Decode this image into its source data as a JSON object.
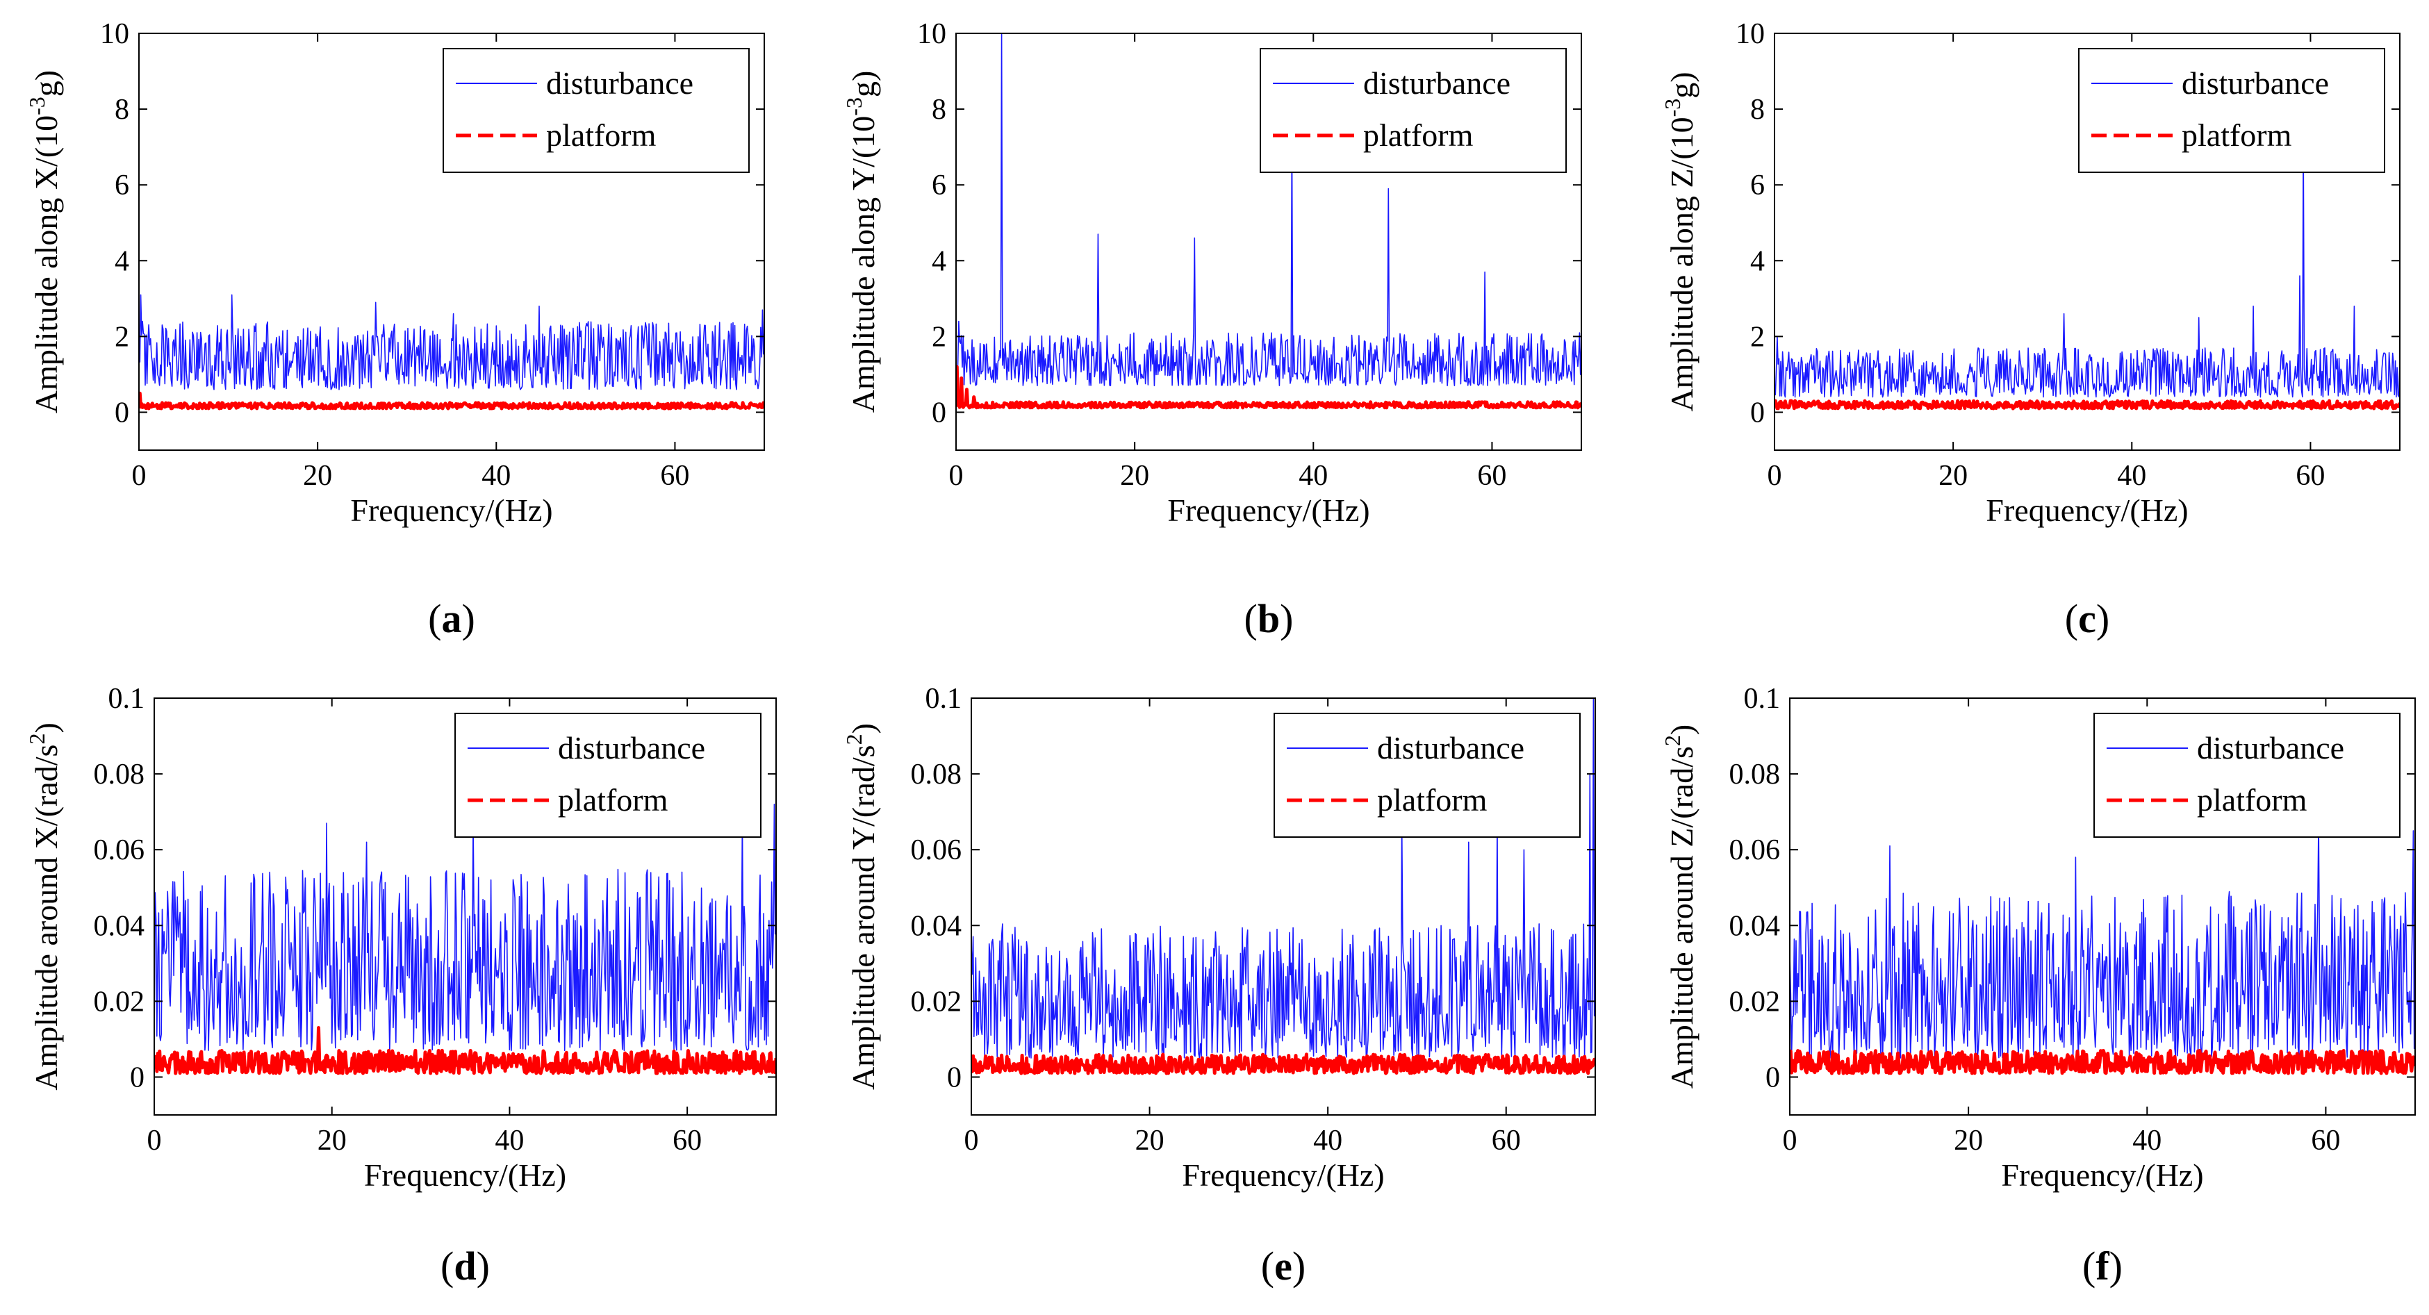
{
  "figure": {
    "colors": {
      "disturbance": "#1a1aff",
      "platform": "#ff0000",
      "axis": "#000000"
    }
  },
  "chart_data": [
    {
      "type": "line",
      "panel_label": "(a)",
      "panel_letter": "a",
      "xlabel": "Frequency/(Hz)",
      "ylabel": "Amplitude along X/(10",
      "ylabel_sup": "-3",
      "ylabel_unit": "g)",
      "xlim": [
        0,
        70
      ],
      "ylim": [
        -1,
        10
      ],
      "xticks": [
        0,
        20,
        40,
        60
      ],
      "xtick_labels": [
        "0",
        "20",
        "40",
        "60"
      ],
      "yticks": [
        0,
        2,
        4,
        6,
        8,
        10
      ],
      "ytick_labels": [
        "0",
        "2",
        "4",
        "6",
        "8",
        "10"
      ],
      "legend": [
        "disturbance",
        "platform"
      ],
      "legend_position": "top-right",
      "series": [
        {
          "name": "disturbance",
          "style": "thin-solid",
          "base": 0.6,
          "amp": 1.8,
          "spikes": [
            [
              0.2,
              3.1
            ],
            [
              10.4,
              3.1
            ],
            [
              26.5,
              2.9
            ],
            [
              35.2,
              2.6
            ],
            [
              44.8,
              2.8
            ],
            [
              69.8,
              2.7
            ]
          ],
          "start": 0,
          "seed": 11
        },
        {
          "name": "platform",
          "style": "thick-dashed",
          "base": 0.1,
          "amp": 0.15,
          "spikes": [
            [
              0.1,
              0.5
            ]
          ],
          "start": 0,
          "seed": 12
        }
      ]
    },
    {
      "type": "line",
      "panel_label": "(b)",
      "panel_letter": "b",
      "xlabel": "Frequency/(Hz)",
      "ylabel": "Amplitude along Y/(10",
      "ylabel_sup": "-3",
      "ylabel_unit": "g)",
      "xlim": [
        0,
        70
      ],
      "ylim": [
        -1,
        10
      ],
      "xticks": [
        0,
        20,
        40,
        60
      ],
      "xtick_labels": [
        "0",
        "20",
        "40",
        "60"
      ],
      "yticks": [
        0,
        2,
        4,
        6,
        8,
        10
      ],
      "ytick_labels": [
        "0",
        "2",
        "4",
        "6",
        "8",
        "10"
      ],
      "legend": [
        "disturbance",
        "platform"
      ],
      "legend_position": "top-right",
      "series": [
        {
          "name": "disturbance",
          "style": "thin-solid",
          "base": 0.7,
          "amp": 1.4,
          "spikes": [
            [
              5.1,
              10.0
            ],
            [
              15.9,
              4.7
            ],
            [
              26.7,
              4.6
            ],
            [
              37.6,
              7.3
            ],
            [
              48.4,
              5.9
            ],
            [
              59.2,
              3.7
            ],
            [
              0.3,
              2.4
            ]
          ],
          "start": 0,
          "seed": 21
        },
        {
          "name": "platform",
          "style": "thick-dashed",
          "base": 0.12,
          "amp": 0.15,
          "spikes": [
            [
              0.1,
              1.2
            ],
            [
              0.6,
              0.9
            ],
            [
              1.2,
              0.6
            ],
            [
              2.0,
              0.4
            ]
          ],
          "start": 0,
          "seed": 22
        }
      ]
    },
    {
      "type": "line",
      "panel_label": "(c)",
      "panel_letter": "c",
      "xlabel": "Frequency/(Hz)",
      "ylabel": "Amplitude along Z/(10",
      "ylabel_sup": "-3",
      "ylabel_unit": "g)",
      "xlim": [
        0,
        70
      ],
      "ylim": [
        -1,
        10
      ],
      "xticks": [
        0,
        20,
        40,
        60
      ],
      "xtick_labels": [
        "0",
        "20",
        "40",
        "60"
      ],
      "yticks": [
        0,
        2,
        4,
        6,
        8,
        10
      ],
      "ytick_labels": [
        "0",
        "2",
        "4",
        "6",
        "8",
        "10"
      ],
      "legend": [
        "disturbance",
        "platform"
      ],
      "legend_position": "top-right",
      "series": [
        {
          "name": "disturbance",
          "style": "thin-solid",
          "base": 0.4,
          "amp": 1.3,
          "spikes": [
            [
              59.2,
              7.3
            ],
            [
              58.8,
              3.6
            ],
            [
              32.4,
              2.6
            ],
            [
              47.5,
              2.5
            ],
            [
              53.6,
              2.8
            ],
            [
              64.9,
              2.8
            ],
            [
              0.3,
              2.0
            ]
          ],
          "start": 0,
          "seed": 31
        },
        {
          "name": "platform",
          "style": "thick-dashed",
          "base": 0.1,
          "amp": 0.2,
          "spikes": [
            [
              0.1,
              0.3
            ]
          ],
          "start": 0,
          "seed": 32
        }
      ]
    },
    {
      "type": "line",
      "panel_label": "(d)",
      "panel_letter": "d",
      "xlabel": "Frequency/(Hz)",
      "ylabel": "Amplitude around X/(rad/s",
      "ylabel_sup": "2",
      "ylabel_unit": ")",
      "xlim": [
        0,
        70
      ],
      "ylim": [
        -0.01,
        0.1
      ],
      "xticks": [
        0,
        20,
        40,
        60
      ],
      "xtick_labels": [
        "0",
        "20",
        "40",
        "60"
      ],
      "yticks": [
        0,
        0.02,
        0.04,
        0.06,
        0.08,
        0.1
      ],
      "ytick_labels": [
        "0",
        "0.02",
        "0.04",
        "0.06",
        "0.08",
        "0.1"
      ],
      "legend": [
        "disturbance",
        "platform"
      ],
      "legend_position": "top-right",
      "series": [
        {
          "name": "disturbance",
          "style": "thin-solid",
          "base": 0.007,
          "amp": 0.048,
          "spikes": [
            [
              19.4,
              0.067
            ],
            [
              35.9,
              0.068
            ],
            [
              66.2,
              0.068
            ],
            [
              69.8,
              0.072
            ],
            [
              23.9,
              0.062
            ]
          ],
          "start": 0,
          "seed": 41
        },
        {
          "name": "platform",
          "style": "thick-dashed",
          "base": 0.001,
          "amp": 0.006,
          "spikes": [
            [
              18.5,
              0.013
            ]
          ],
          "start": 0,
          "seed": 42
        }
      ]
    },
    {
      "type": "line",
      "panel_label": "(e)",
      "panel_letter": "e",
      "xlabel": "Frequency/(Hz)",
      "ylabel": "Amplitude around Y/(rad/s",
      "ylabel_sup": "2",
      "ylabel_unit": ")",
      "xlim": [
        0,
        70
      ],
      "ylim": [
        -0.01,
        0.1
      ],
      "xticks": [
        0,
        20,
        40,
        60
      ],
      "xtick_labels": [
        "0",
        "20",
        "40",
        "60"
      ],
      "yticks": [
        0,
        0.02,
        0.04,
        0.06,
        0.08,
        0.1
      ],
      "ytick_labels": [
        "0",
        "0.02",
        "0.04",
        "0.06",
        "0.08",
        "0.1"
      ],
      "legend": [
        "disturbance",
        "platform"
      ],
      "legend_position": "top-right",
      "series": [
        {
          "name": "disturbance",
          "style": "thin-solid",
          "base": 0.005,
          "amp": 0.036,
          "spikes": [
            [
              69.8,
              0.1
            ],
            [
              69.4,
              0.08
            ],
            [
              48.3,
              0.068
            ],
            [
              59.0,
              0.068
            ],
            [
              62.0,
              0.06
            ],
            [
              55.8,
              0.062
            ]
          ],
          "start": 0,
          "seed": 51
        },
        {
          "name": "platform",
          "style": "thick-dashed",
          "base": 0.001,
          "amp": 0.005,
          "spikes": [],
          "start": 0,
          "seed": 52
        }
      ]
    },
    {
      "type": "line",
      "panel_label": "(f)",
      "panel_letter": "f",
      "xlabel": "Frequency/(Hz)",
      "ylabel": "Amplitude around Z/(rad/s",
      "ylabel_sup": "2",
      "ylabel_unit": ")",
      "xlim": [
        0,
        70
      ],
      "ylim": [
        -0.01,
        0.1
      ],
      "xticks": [
        0,
        20,
        40,
        60
      ],
      "xtick_labels": [
        "0",
        "20",
        "40",
        "60"
      ],
      "yticks": [
        0,
        0.02,
        0.04,
        0.06,
        0.08,
        0.1
      ],
      "ytick_labels": [
        "0",
        "0.02",
        "0.04",
        "0.06",
        "0.08",
        "0.1"
      ],
      "legend": [
        "disturbance",
        "platform"
      ],
      "legend_position": "top-right",
      "series": [
        {
          "name": "disturbance",
          "style": "thin-solid",
          "base": 0.005,
          "amp": 0.044,
          "spikes": [
            [
              59.2,
              0.068
            ],
            [
              11.2,
              0.061
            ],
            [
              69.8,
              0.065
            ],
            [
              32.0,
              0.058
            ]
          ],
          "start": 0,
          "seed": 61
        },
        {
          "name": "platform",
          "style": "thick-dashed",
          "base": 0.001,
          "amp": 0.006,
          "spikes": [],
          "start": 0,
          "seed": 62
        }
      ]
    }
  ]
}
